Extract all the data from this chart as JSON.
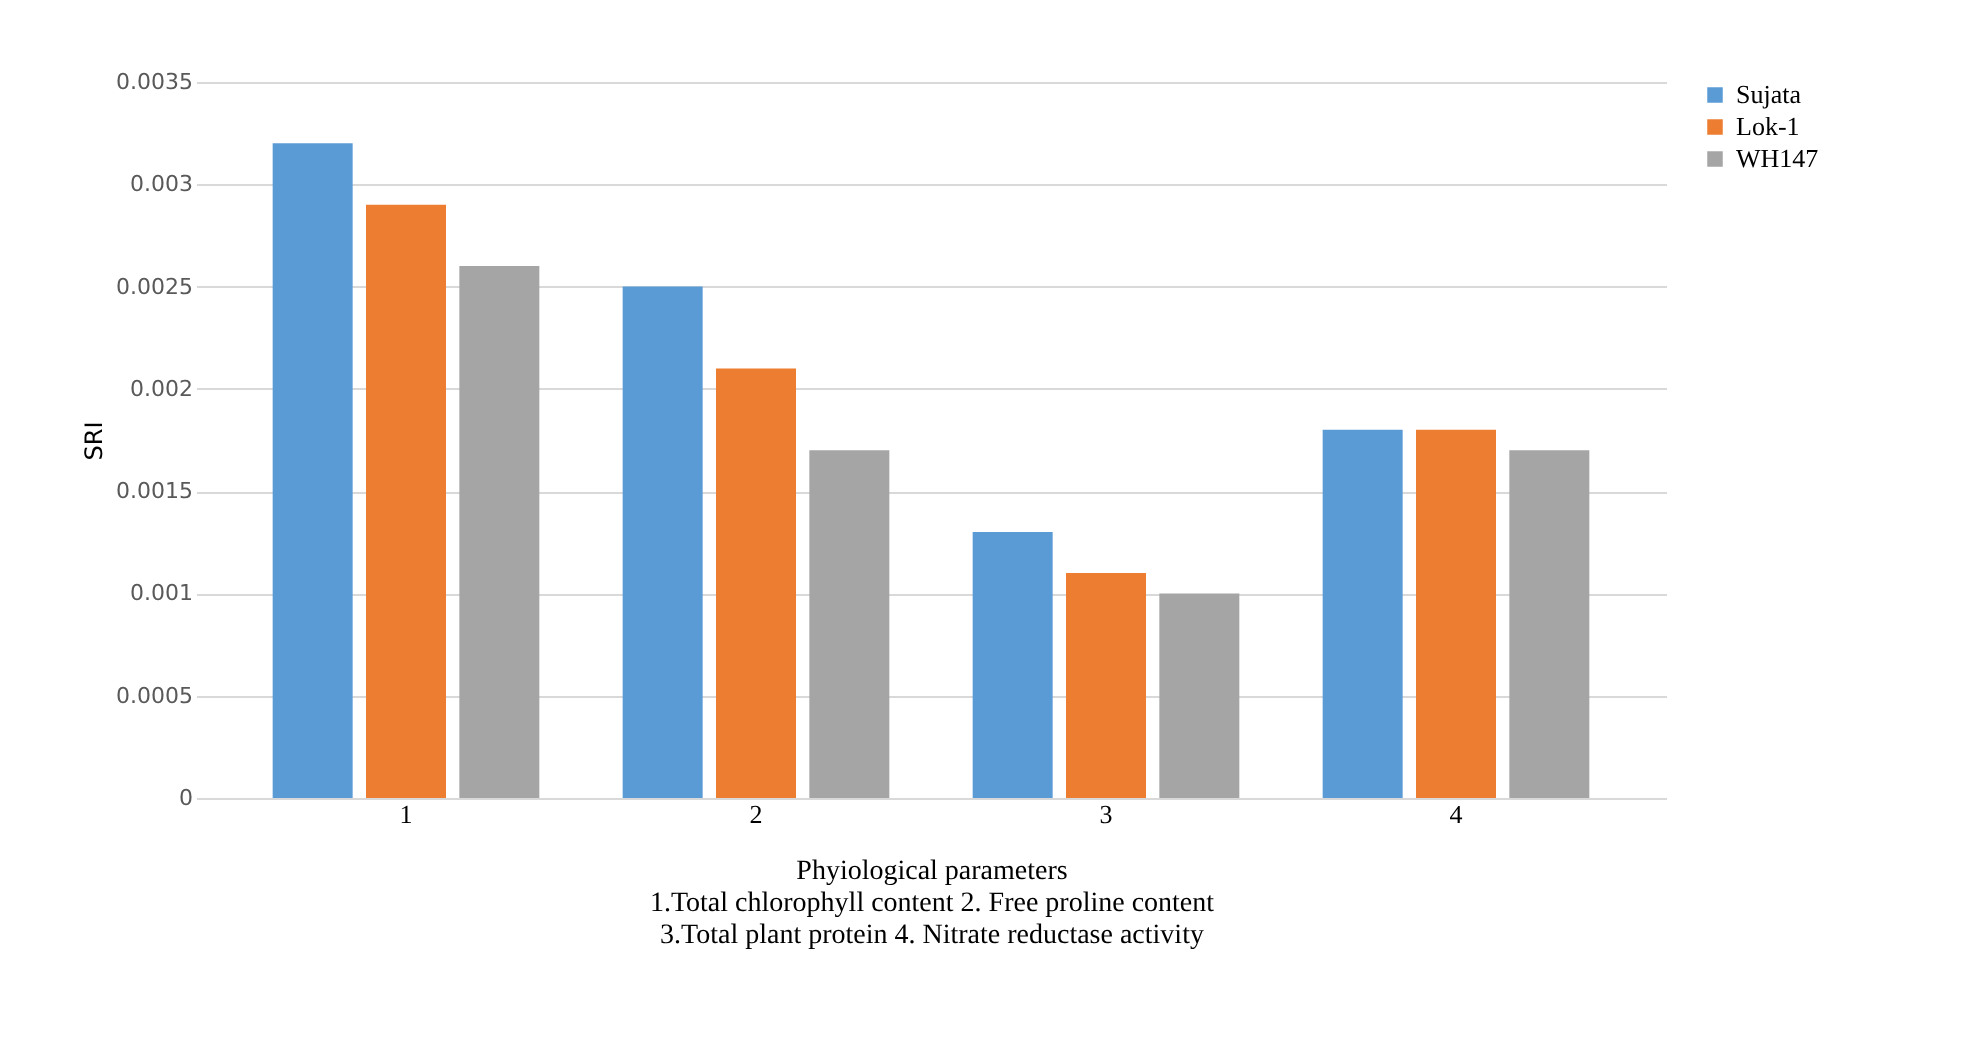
{
  "chart_data": {
    "type": "bar",
    "ylabel": "SRI",
    "xlabel": "Phyiological parameters\n1.Total chlorophyll content  2. Free proline content\n3.Total plant protein 4. Nitrate reductase activity",
    "categories": [
      "1",
      "2",
      "3",
      "4"
    ],
    "series": [
      {
        "name": "Sujata",
        "color": "#5b9bd5",
        "values": [
          0.0032,
          0.0025,
          0.0013,
          0.0018
        ]
      },
      {
        "name": "Lok-1",
        "color": "#ed7d31",
        "values": [
          0.0029,
          0.0021,
          0.0011,
          0.0018
        ]
      },
      {
        "name": "WH147",
        "color": "#a5a5a5",
        "values": [
          0.0026,
          0.0017,
          0.001,
          0.0017
        ]
      }
    ],
    "ylim": [
      0,
      0.0035
    ],
    "yticks": [
      0,
      0.0005,
      0.001,
      0.0015,
      0.002,
      0.0025,
      0.003,
      0.0035
    ],
    "grid": "y",
    "legend": "right"
  }
}
